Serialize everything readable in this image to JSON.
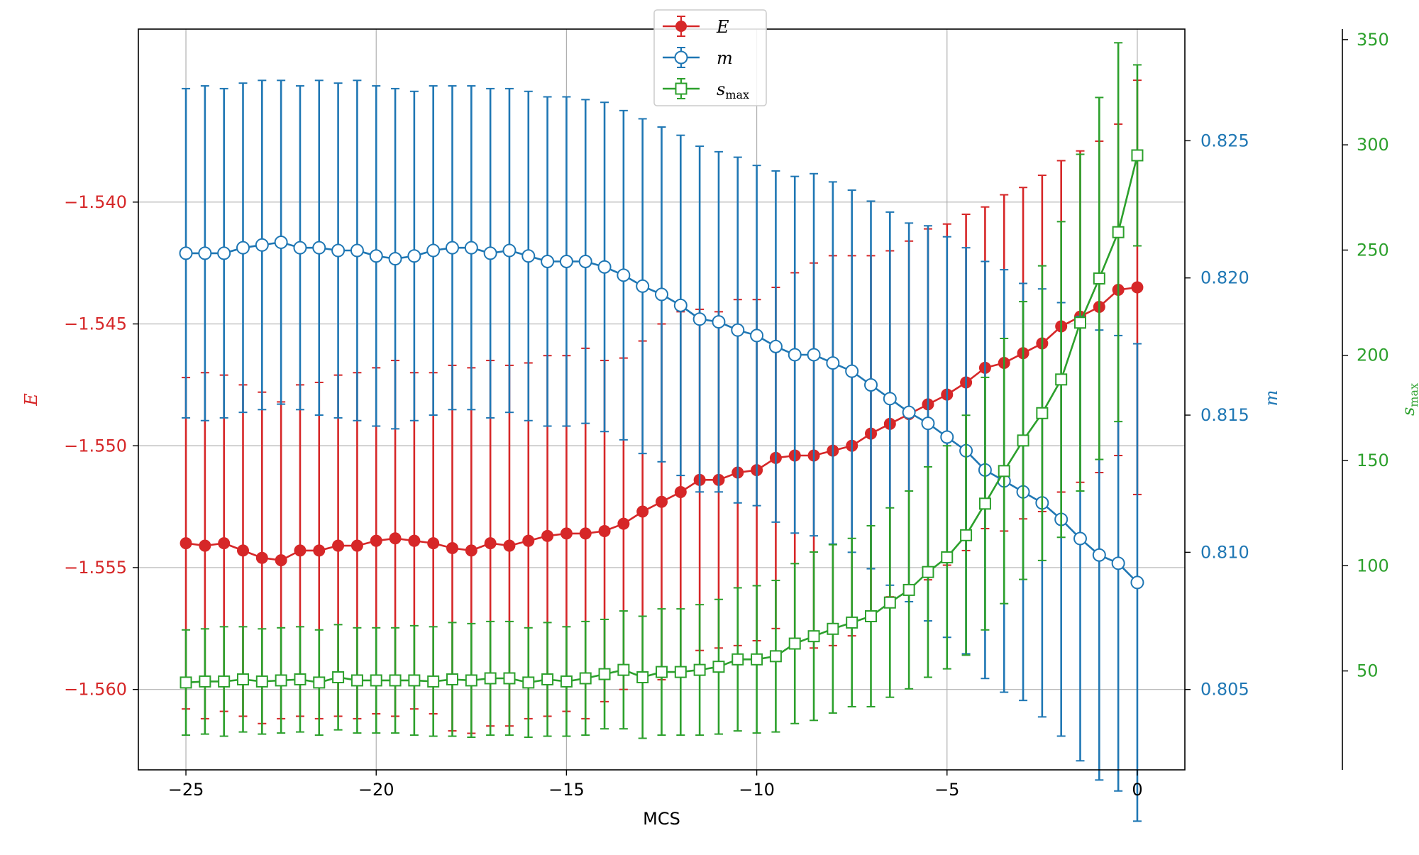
{
  "chart_data": {
    "type": "line",
    "xlabel": "MCS",
    "x_ticks": [
      "−25",
      "−20",
      "−15",
      "−10",
      "−5",
      "0"
    ],
    "x_tick_values": [
      -25,
      -20,
      -15,
      -10,
      -5,
      0
    ],
    "xlim": [
      -26.25,
      1.25
    ],
    "grid": true,
    "legend_position": "top-center",
    "legend": [
      {
        "label": "E",
        "marker": "filled-circle",
        "color": "#d62728"
      },
      {
        "label": "m",
        "marker": "open-circle",
        "color": "#1f77b4"
      },
      {
        "label": "s",
        "sub": "max",
        "marker": "open-square",
        "color": "#2ca02c"
      }
    ],
    "axes": {
      "E": {
        "label": "E",
        "color": "#d62728",
        "ylim": [
          -1.5633,
          -1.5329
        ],
        "ticks": [
          -1.54,
          -1.545,
          -1.55,
          -1.555,
          -1.56
        ],
        "tick_labels": [
          "−1.540",
          "−1.545",
          "−1.550",
          "−1.555",
          "−1.560"
        ]
      },
      "m": {
        "label": "m",
        "color": "#1f77b4",
        "ylim": [
          0.80207,
          0.82907
        ],
        "ticks": [
          0.825,
          0.82,
          0.815,
          0.81,
          0.805
        ],
        "tick_labels": [
          "0.825",
          "0.820",
          "0.815",
          "0.810",
          "0.805"
        ]
      },
      "smax": {
        "label": "s",
        "sub": "max",
        "color": "#2ca02c",
        "ylim": [
          3,
          355
        ],
        "ticks": [
          350,
          300,
          250,
          200,
          150,
          100,
          50
        ],
        "tick_labels": [
          "350",
          "300",
          "250",
          "200",
          "150",
          "100",
          "50"
        ]
      }
    },
    "x": [
      -25,
      -24.5,
      -24,
      -23.5,
      -23,
      -22.5,
      -22,
      -21.5,
      -21,
      -20.5,
      -20,
      -19.5,
      -19,
      -18.5,
      -18,
      -17.5,
      -17,
      -16.5,
      -16,
      -15.5,
      -15,
      -14.5,
      -14,
      -13.5,
      -13,
      -12.5,
      -12,
      -11.5,
      -11,
      -10.5,
      -10,
      -9.5,
      -9,
      -8.5,
      -8,
      -7.5,
      -7,
      -6.5,
      -6,
      -5.5,
      -5,
      -4.5,
      -4,
      -3.5,
      -3,
      -2.5,
      -2,
      -1.5,
      -1,
      -0.5,
      0
    ],
    "series": [
      {
        "name": "E",
        "axis": "E",
        "values": [
          -1.554,
          -1.5541,
          -1.554,
          -1.5543,
          -1.5546,
          -1.5547,
          -1.5543,
          -1.5543,
          -1.5541,
          -1.5541,
          -1.5539,
          -1.5538,
          -1.5539,
          -1.554,
          -1.5542,
          -1.5543,
          -1.554,
          -1.5541,
          -1.5539,
          -1.5537,
          -1.5536,
          -1.5536,
          -1.5535,
          -1.5532,
          -1.5527,
          -1.5523,
          -1.5519,
          -1.5514,
          -1.5514,
          -1.5511,
          -1.551,
          -1.5505,
          -1.5504,
          -1.5504,
          -1.5502,
          -1.55,
          -1.5495,
          -1.5491,
          -1.5487,
          -1.5483,
          -1.5479,
          -1.5474,
          -1.5468,
          -1.5466,
          -1.5462,
          -1.5458,
          -1.5451,
          -1.5447,
          -1.5443,
          -1.5436,
          -1.5435
        ],
        "errors": [
          0.0068,
          0.0071,
          0.0069,
          0.0068,
          0.0068,
          0.0065,
          0.0068,
          0.0069,
          0.007,
          0.0071,
          0.0071,
          0.0073,
          0.0069,
          0.007,
          0.0075,
          0.0075,
          0.0075,
          0.0074,
          0.0073,
          0.0074,
          0.0073,
          0.0076,
          0.007,
          0.0068,
          0.007,
          0.0073,
          0.0074,
          0.007,
          0.0069,
          0.0071,
          0.007,
          0.007,
          0.0075,
          0.0079,
          0.008,
          0.0078,
          0.0073,
          0.0071,
          0.0071,
          0.0072,
          0.007,
          0.0069,
          0.0066,
          0.0069,
          0.0068,
          0.0069,
          0.0068,
          0.0068,
          0.0068,
          0.0068,
          0.0085
        ]
      },
      {
        "name": "m",
        "axis": "m",
        "values": [
          0.8209,
          0.8209,
          0.8209,
          0.8211,
          0.8212,
          0.8213,
          0.8211,
          0.8211,
          0.821,
          0.821,
          0.8208,
          0.8207,
          0.8208,
          0.821,
          0.8211,
          0.8211,
          0.8209,
          0.821,
          0.8208,
          0.8206,
          0.8206,
          0.8206,
          0.8204,
          0.8201,
          0.8197,
          0.8194,
          0.819,
          0.8185,
          0.8184,
          0.8181,
          0.8179,
          0.8175,
          0.8172,
          0.8172,
          0.8169,
          0.8166,
          0.8161,
          0.8156,
          0.8151,
          0.8147,
          0.8142,
          0.8137,
          0.813,
          0.8126,
          0.8122,
          0.8118,
          0.8112,
          0.8105,
          0.8099,
          0.8096,
          0.8089
        ],
        "errors": [
          0.006,
          0.0061,
          0.006,
          0.006,
          0.006,
          0.0059,
          0.0059,
          0.0061,
          0.0061,
          0.0062,
          0.0062,
          0.0062,
          0.006,
          0.006,
          0.0059,
          0.0059,
          0.006,
          0.0059,
          0.006,
          0.006,
          0.006,
          0.0059,
          0.006,
          0.006,
          0.0061,
          0.0061,
          0.0062,
          0.0063,
          0.0062,
          0.0063,
          0.0062,
          0.0064,
          0.0065,
          0.0066,
          0.0066,
          0.0066,
          0.0067,
          0.0068,
          0.0069,
          0.0072,
          0.0073,
          0.0074,
          0.0076,
          0.0077,
          0.0076,
          0.0078,
          0.0079,
          0.0081,
          0.0082,
          0.0083,
          0.0087
        ]
      },
      {
        "name": "smax",
        "axis": "smax",
        "values": [
          44.5,
          45,
          45,
          46,
          45,
          45.5,
          46,
          44.5,
          47,
          45.5,
          45.5,
          45.5,
          45.5,
          45,
          46,
          45.5,
          46.5,
          46.5,
          44.5,
          46,
          45,
          46.5,
          48.5,
          50.5,
          47,
          49.5,
          49.5,
          50.5,
          52,
          55.5,
          55.5,
          57,
          63,
          66.5,
          70,
          73,
          76,
          82.5,
          88.5,
          97,
          104,
          114.5,
          129.5,
          145,
          159.5,
          172.5,
          188.5,
          215.5,
          236.5,
          258.5,
          295
        ],
        "errors": [
          25,
          25,
          26,
          25,
          25,
          25,
          25,
          25,
          25,
          25,
          25,
          25,
          26,
          26,
          27,
          27,
          27,
          27,
          26,
          27,
          26,
          27,
          26,
          28,
          29,
          30,
          30,
          31,
          32,
          34,
          35,
          36,
          38,
          40,
          40,
          40,
          43,
          45,
          47,
          50,
          53,
          57,
          60,
          63,
          66,
          70,
          75,
          80,
          86,
          90,
          43
        ]
      }
    ]
  }
}
